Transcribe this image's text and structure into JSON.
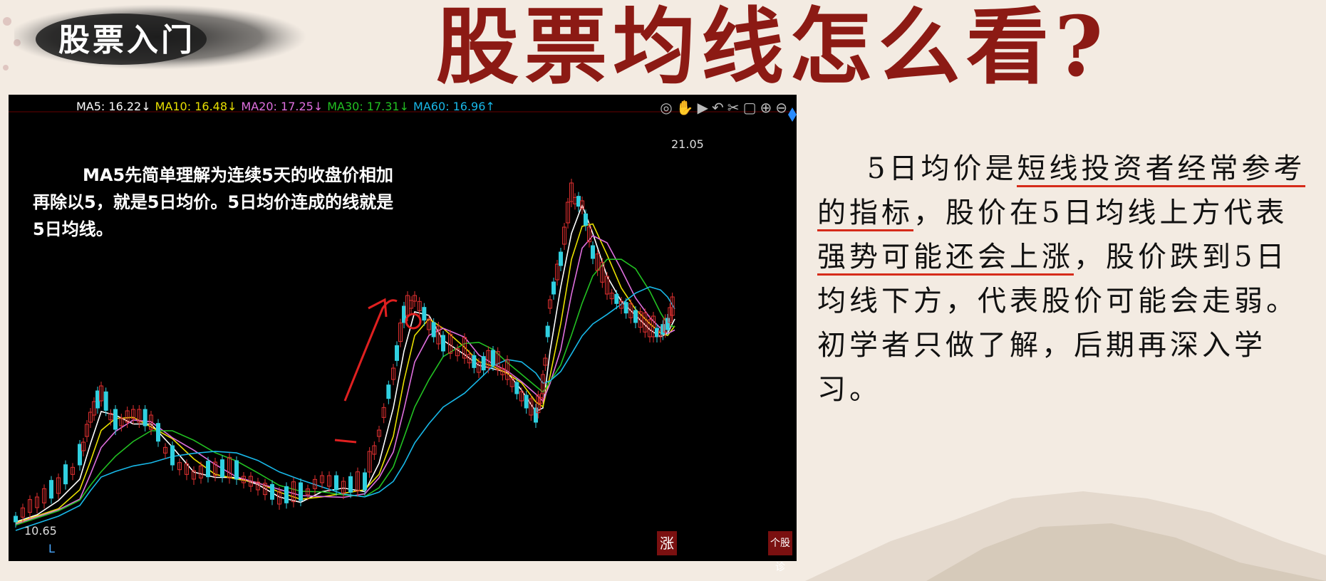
{
  "tag": {
    "text": "股票入门"
  },
  "title": "股票均线怎么看?",
  "chart": {
    "legend": [
      {
        "label": "MA5: 16.22",
        "arrow": "↓",
        "color": "#ffffff"
      },
      {
        "label": "MA10: 16.48",
        "arrow": "↓",
        "color": "#e8e000"
      },
      {
        "label": "MA20: 17.25",
        "arrow": "↓",
        "color": "#e070e0"
      },
      {
        "label": "MA30: 17.31",
        "arrow": "↓",
        "color": "#22c022"
      },
      {
        "label": "MA60: 16.96",
        "arrow": "↑",
        "color": "#18b8e8"
      }
    ],
    "note": "MA5先简单理解为连续5天的收盘价相加再除以5，就是5日均价。5日均价连成的线就是5日均线。",
    "high_label": "21.05",
    "low_label": "10.65",
    "low_marker": "L",
    "badge_rise": "涨",
    "badge_diag": "个股诊",
    "toolbar_icons": [
      "settings-icon",
      "hand-icon",
      "play-icon",
      "undo-icon",
      "cut-icon",
      "lock-icon",
      "zoom-in-icon",
      "zoom-out-icon"
    ]
  },
  "explain": {
    "p1": "5日均价是",
    "u1": "短线投资者经常参考的指标",
    "p2": "，股价在5日均线上方代表",
    "u2": "强势",
    "u3": "可能还会上涨",
    "p3": "，股价跌到5日均线下方，代表股价可能会走弱。初学者只做了解，后期再深入学习。"
  },
  "chart_data": {
    "type": "line",
    "series": [
      {
        "name": "MA5",
        "color": "#ffffff"
      },
      {
        "name": "MA10",
        "color": "#e8e000"
      },
      {
        "name": "MA20",
        "color": "#e070e0"
      },
      {
        "name": "MA30",
        "color": "#22c022"
      },
      {
        "name": "MA60",
        "color": "#18b8e8"
      }
    ],
    "annotations": [
      "21.05",
      "10.65"
    ]
  }
}
